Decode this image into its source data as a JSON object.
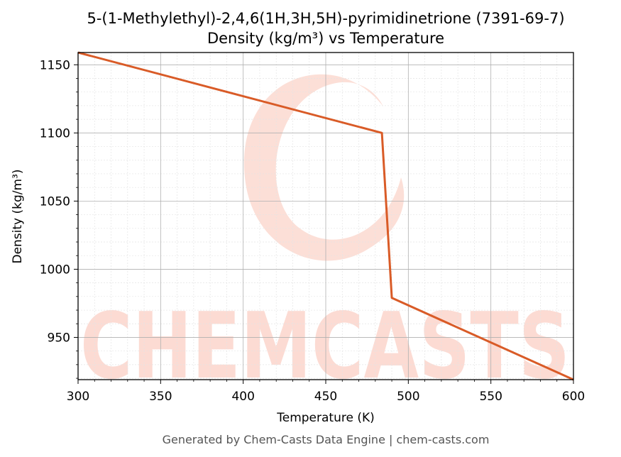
{
  "chart_data": {
    "type": "line",
    "title": "5-(1-Methylethyl)-2,4,6(1H,3H,5H)-pyrimidinetrione (7391-69-7)",
    "subtitle": "Density (kg/m³) vs Temperature",
    "xlabel": "Temperature (K)",
    "ylabel": "Density (kg/m³)",
    "xlim": [
      300,
      600
    ],
    "ylim": [
      919,
      1159
    ],
    "x_ticks": [
      300,
      350,
      400,
      450,
      500,
      550,
      600
    ],
    "y_ticks": [
      950,
      1000,
      1050,
      1100,
      1150
    ],
    "x_tick_labels": [
      "300",
      "350",
      "400",
      "450",
      "500",
      "550",
      "600"
    ],
    "y_tick_labels": [
      "950",
      "1000",
      "1050",
      "1100",
      "1150"
    ],
    "grid": true,
    "minor_grid": true,
    "series": [
      {
        "color": "#d95b27",
        "points": [
          [
            300,
            1159
          ],
          [
            484,
            1100
          ],
          [
            490,
            979
          ],
          [
            600,
            919
          ]
        ]
      }
    ]
  },
  "watermark": {
    "text": "CHEMCASTS",
    "color": "#fcd5cc"
  },
  "footer": "Generated by Chem-Casts Data Engine | chem-casts.com"
}
